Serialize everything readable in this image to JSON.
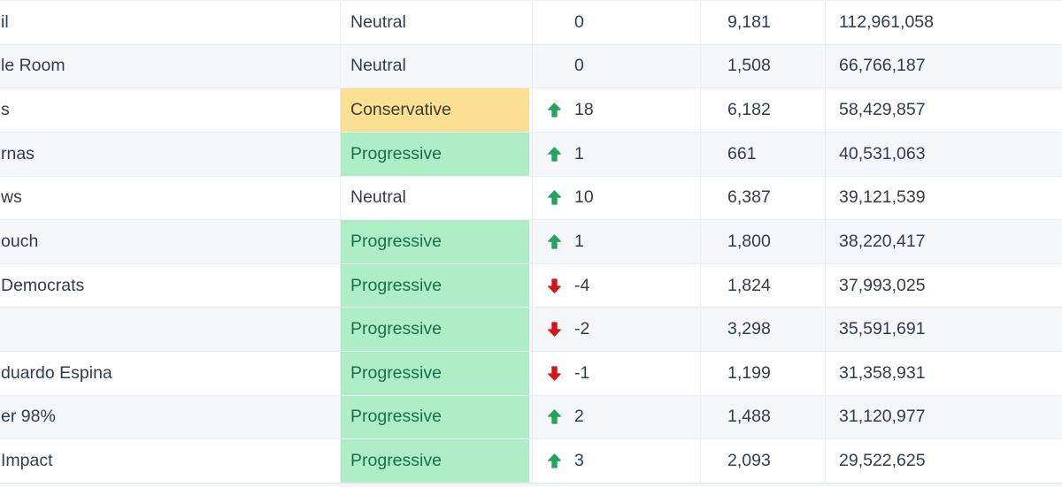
{
  "table": {
    "rows": [
      {
        "name": "il",
        "bias": "Neutral",
        "bias_type": "neutral",
        "change": "0",
        "direction": "none",
        "count": "9,181",
        "reach": "112,961,058"
      },
      {
        "name": "le Room",
        "bias": "Neutral",
        "bias_type": "neutral",
        "change": "0",
        "direction": "none",
        "count": "1,508",
        "reach": "66,766,187"
      },
      {
        "name": "s",
        "bias": "Conservative",
        "bias_type": "conservative",
        "change": "18",
        "direction": "up",
        "count": "6,182",
        "reach": "58,429,857"
      },
      {
        "name": "rnas",
        "bias": "Progressive",
        "bias_type": "progressive",
        "change": "1",
        "direction": "up",
        "count": "661",
        "reach": "40,531,063"
      },
      {
        "name": "ws",
        "bias": "Neutral",
        "bias_type": "neutral",
        "change": "10",
        "direction": "up",
        "count": "6,387",
        "reach": "39,121,539"
      },
      {
        "name": "ouch",
        "bias": "Progressive",
        "bias_type": "progressive",
        "change": "1",
        "direction": "up",
        "count": "1,800",
        "reach": "38,220,417"
      },
      {
        "name": "Democrats",
        "bias": "Progressive",
        "bias_type": "progressive",
        "change": "-4",
        "direction": "down",
        "count": "1,824",
        "reach": "37,993,025"
      },
      {
        "name": "",
        "bias": "Progressive",
        "bias_type": "progressive",
        "change": "-2",
        "direction": "down",
        "count": "3,298",
        "reach": "35,591,691"
      },
      {
        "name": "duardo Espina",
        "bias": "Progressive",
        "bias_type": "progressive",
        "change": "-1",
        "direction": "down",
        "count": "1,199",
        "reach": "31,358,931"
      },
      {
        "name": "er 98%",
        "bias": "Progressive",
        "bias_type": "progressive",
        "change": "2",
        "direction": "up",
        "count": "1,488",
        "reach": "31,120,977"
      },
      {
        "name": "Impact",
        "bias": "Progressive",
        "bias_type": "progressive",
        "change": "3",
        "direction": "up",
        "count": "2,093",
        "reach": "29,522,625"
      }
    ]
  },
  "colors": {
    "text": "#2e3d4f",
    "neutral_bg": "transparent",
    "conservative_bg": "#fbdf92",
    "conservative_text": "#3e3c31",
    "progressive_bg": "#aeeec7",
    "progressive_text": "#1b6e4c",
    "up_arrow_green": "#27a35d",
    "down_arrow_red": "#d4151b",
    "alt_row_bg": "#f4f6f9",
    "row_border": "#e9ecf0"
  },
  "icons": {
    "up": "trend-up-icon",
    "down": "trend-down-icon"
  }
}
